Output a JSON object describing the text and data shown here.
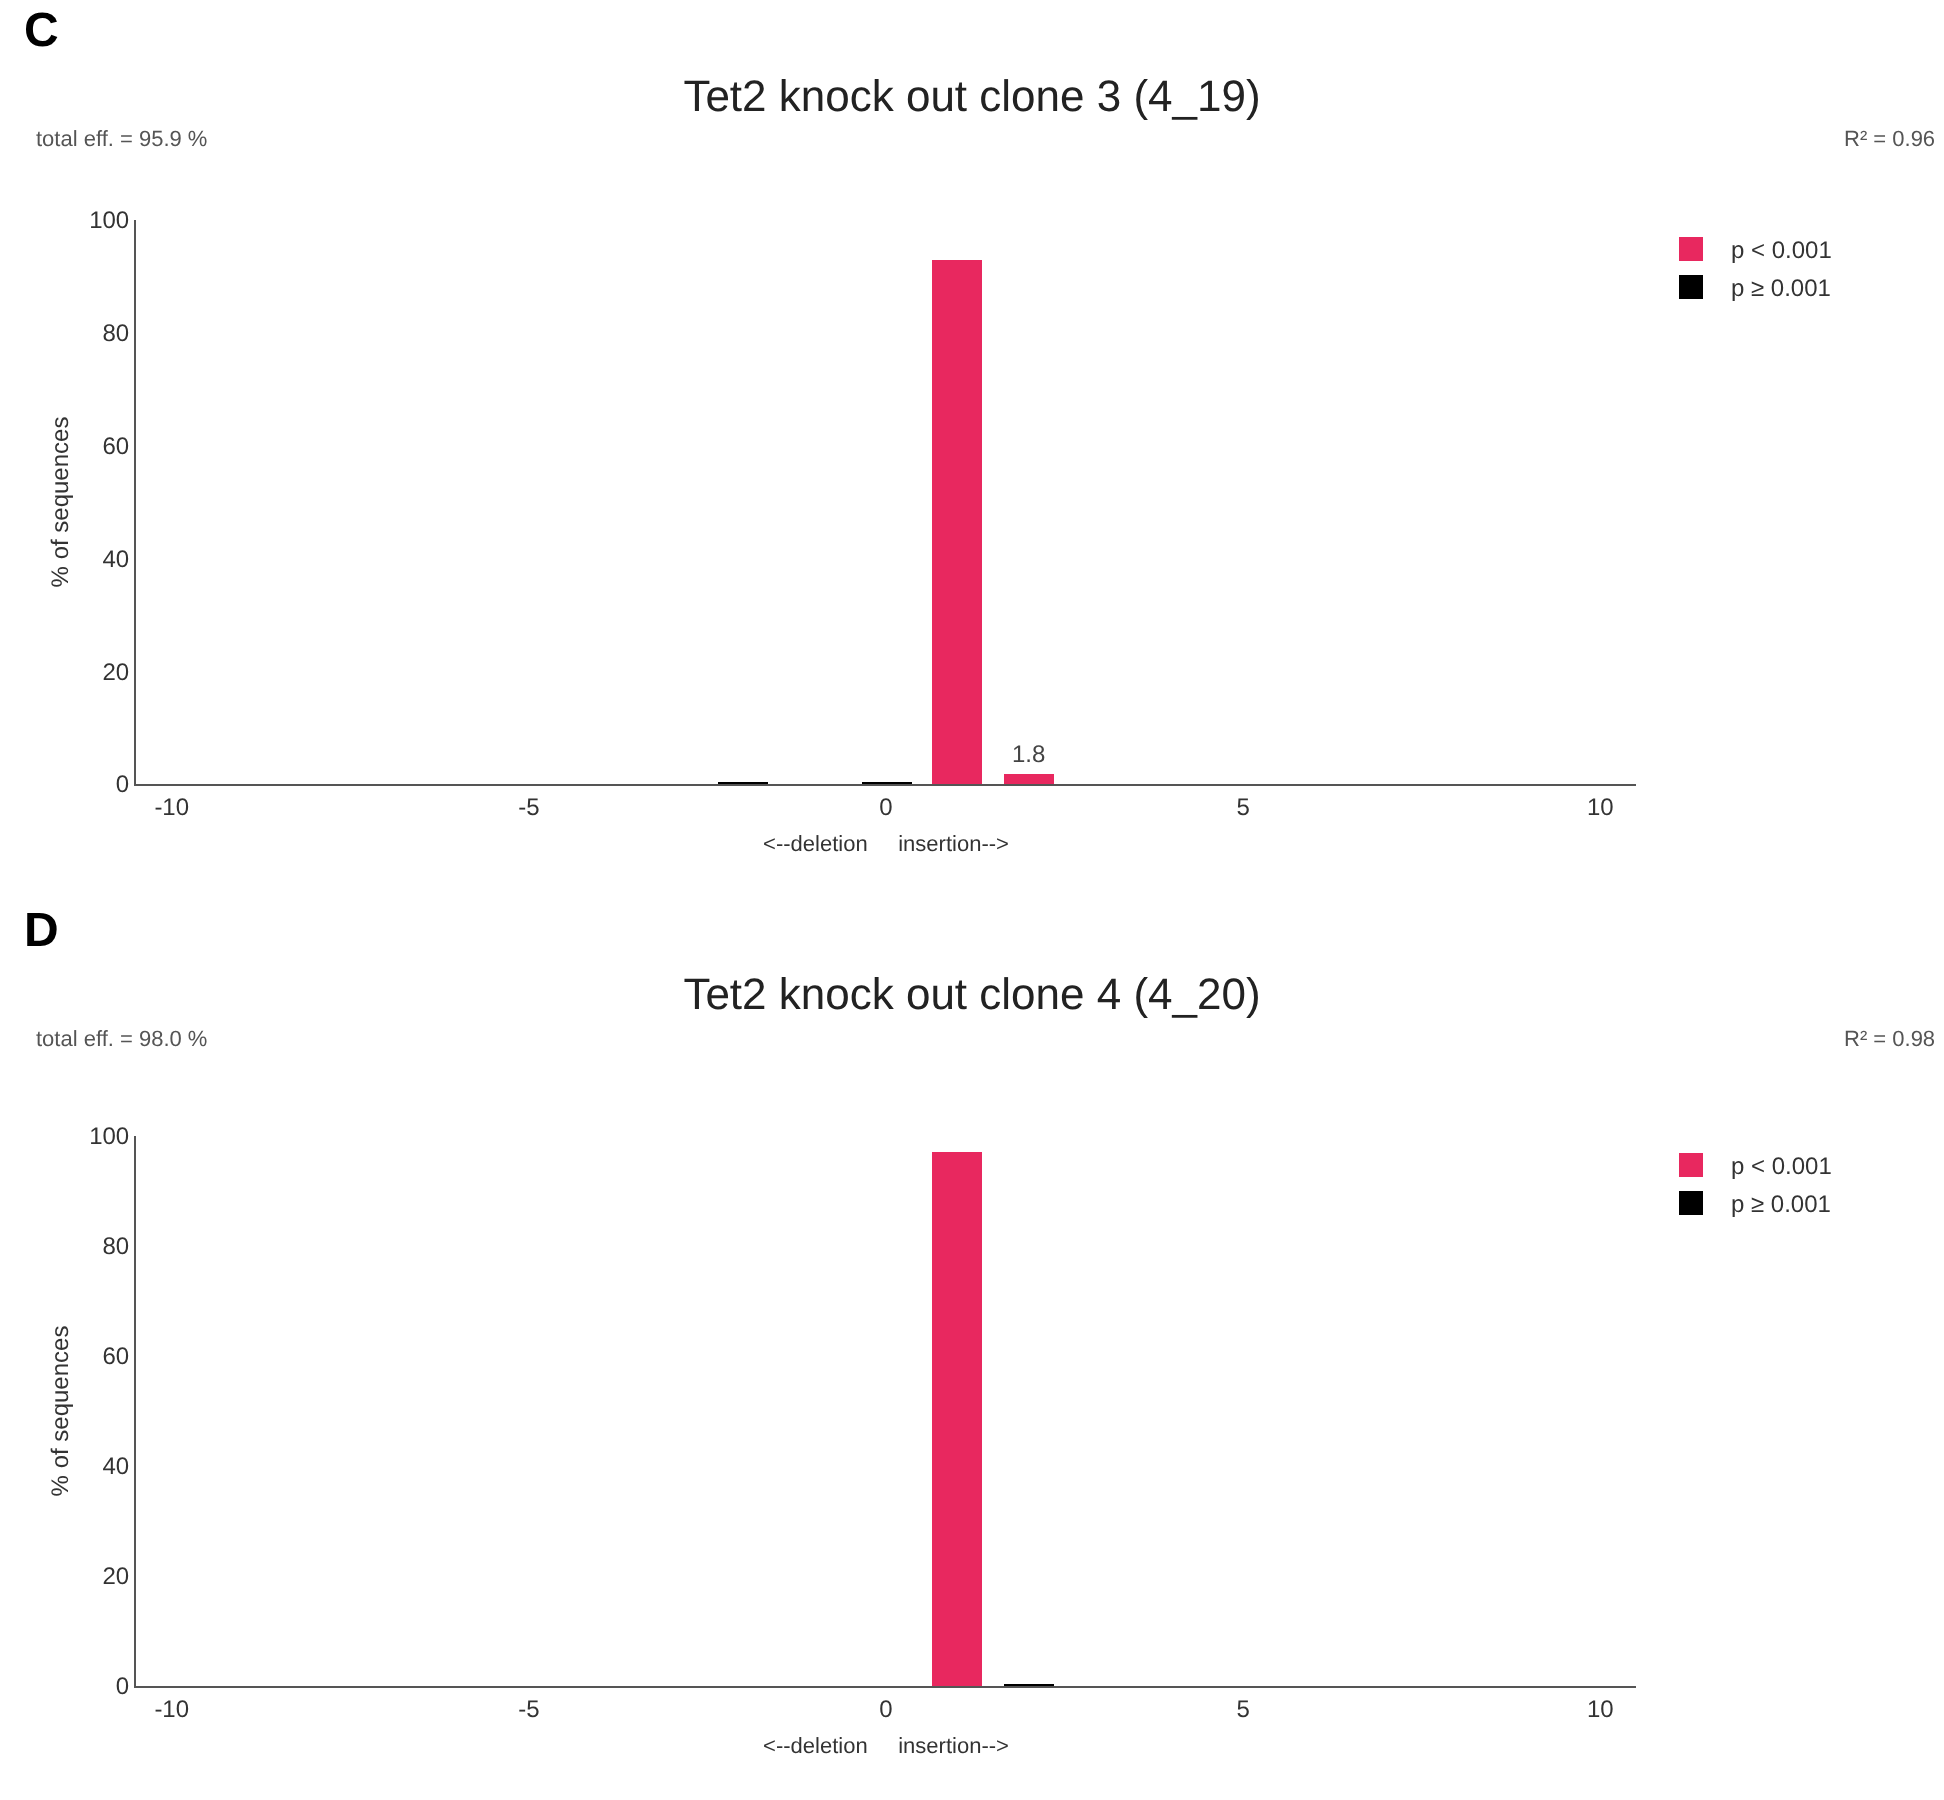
{
  "chart_data": [
    {
      "type": "bar",
      "title": "Tet2 knock out clone 3 (4_19)",
      "xlabel": "<--deletion     insertion-->",
      "ylabel": "% of sequences",
      "annotations": [
        "C",
        "total eff. = 95.9 %",
        "R² = 0.96"
      ],
      "series": [
        {
          "name": "p < 0.001",
          "color": "#e8285f",
          "x": [
            1,
            2
          ],
          "values": [
            93,
            1.8
          ],
          "value_labels": [
            null,
            "1.8"
          ]
        },
        {
          "name": "p ≥ 0.001",
          "color": "#000000",
          "x": [
            -2,
            0
          ],
          "values": [
            0.3,
            0.3
          ]
        }
      ],
      "xlim": [
        -10.5,
        10.5
      ],
      "xticks": [
        -10,
        -5,
        0,
        5,
        10
      ],
      "ylim": [
        0,
        100
      ],
      "yticks": [
        0,
        20,
        40,
        60,
        80,
        100
      ],
      "grid": false,
      "legend": "top right"
    },
    {
      "type": "bar",
      "title": "Tet2 knock out clone 4 (4_20)",
      "xlabel": "<--deletion     insertion-->",
      "ylabel": "% of sequences",
      "annotations": [
        "D",
        "total eff. = 98.0 %",
        "R² = 0.98"
      ],
      "series": [
        {
          "name": "p < 0.001",
          "color": "#e8285f",
          "x": [
            1
          ],
          "values": [
            97
          ]
        },
        {
          "name": "p ≥ 0.001",
          "color": "#000000",
          "x": [
            2
          ],
          "values": [
            0.3
          ]
        }
      ],
      "xlim": [
        -10.5,
        10.5
      ],
      "xticks": [
        -10,
        -5,
        0,
        5,
        10
      ],
      "ylim": [
        0,
        100
      ],
      "yticks": [
        0,
        20,
        40,
        60,
        80,
        100
      ],
      "grid": false,
      "legend": "top right"
    }
  ]
}
